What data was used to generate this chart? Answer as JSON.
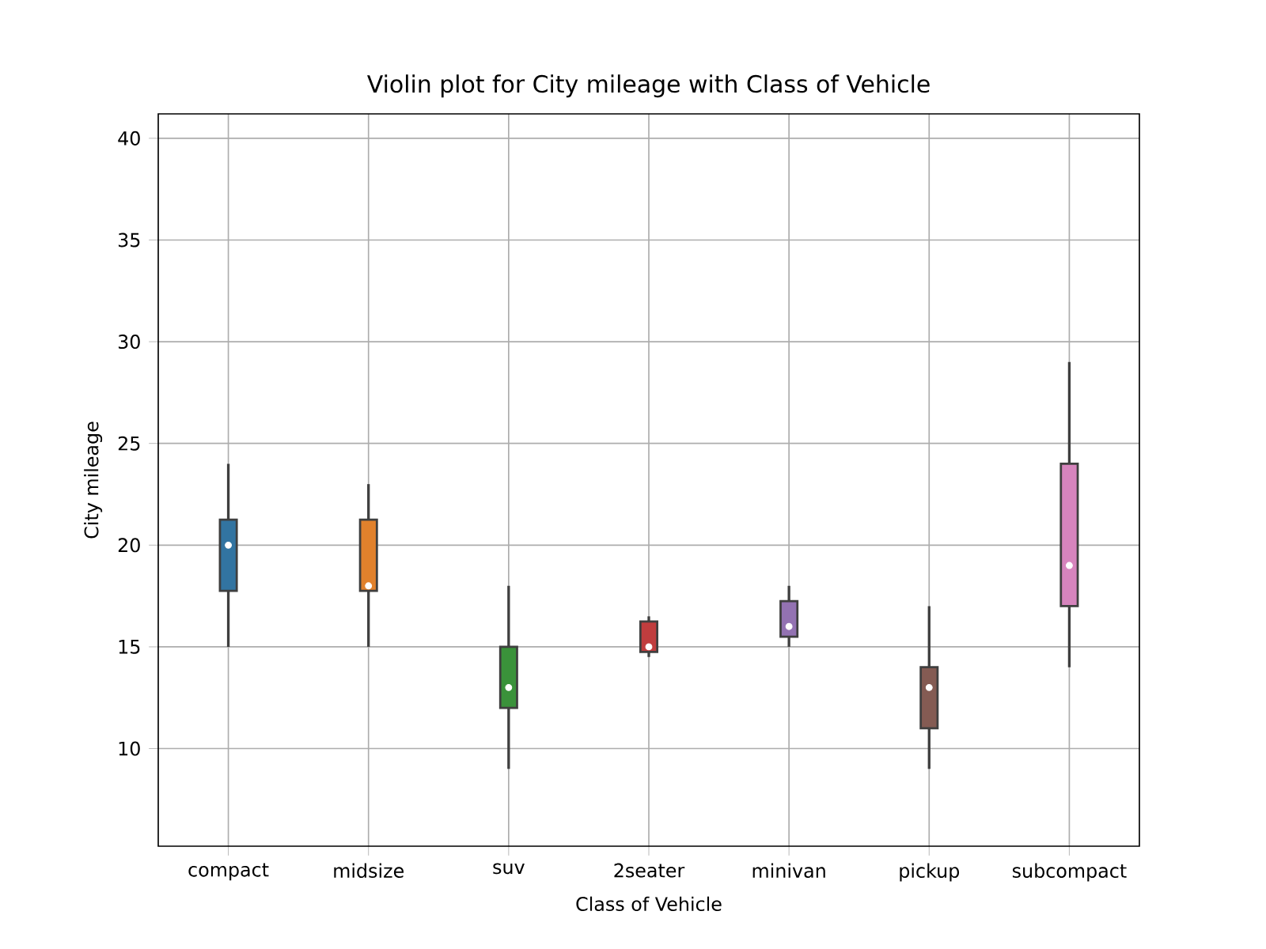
{
  "chart_data": {
    "type": "box",
    "title": "Violin plot for City mileage with Class of Vehicle",
    "xlabel": "Class of Vehicle",
    "ylabel": "City mileage",
    "categories": [
      "compact",
      "midsize",
      "suv",
      "2seater",
      "minivan",
      "pickup",
      "subcompact"
    ],
    "colors": [
      "#3274a1",
      "#e1812c",
      "#3a923a",
      "#c03d3e",
      "#9372b2",
      "#845b53",
      "#d684bd"
    ],
    "boxes": [
      {
        "low": 15,
        "q1": 17.75,
        "median": 20,
        "q3": 21.25,
        "high": 24
      },
      {
        "low": 15,
        "q1": 17.75,
        "median": 18,
        "q3": 21.25,
        "high": 23
      },
      {
        "low": 9,
        "q1": 12,
        "median": 13,
        "q3": 15,
        "high": 18
      },
      {
        "low": 14.5,
        "q1": 14.75,
        "median": 15,
        "q3": 16.25,
        "high": 16.5
      },
      {
        "low": 15,
        "q1": 15.5,
        "median": 16,
        "q3": 17.25,
        "high": 18
      },
      {
        "low": 9,
        "q1": 11,
        "median": 13,
        "q3": 14,
        "high": 17
      },
      {
        "low": 14,
        "q1": 17,
        "median": 19,
        "q3": 24,
        "high": 29
      }
    ],
    "ylim": [
      5.2,
      41.2
    ],
    "yticks": [
      10,
      15,
      20,
      25,
      30,
      35,
      40
    ],
    "grid": true
  }
}
